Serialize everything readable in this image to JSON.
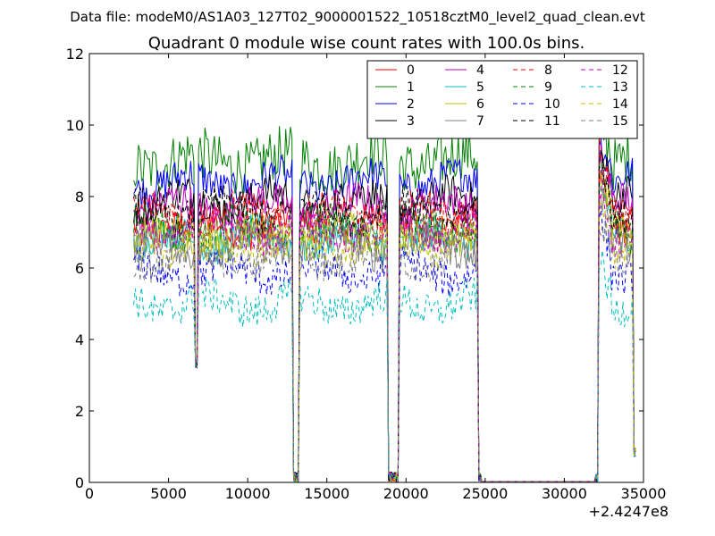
{
  "chart_data": {
    "type": "line",
    "suptitle": "Data file: modeM0/AS1A03_127T02_9000001522_10518cztM0_level2_quad_clean.evt",
    "title": "Quadrant 0 module wise count rates with 100.0s bins.",
    "xlabel": "",
    "ylabel": "",
    "xlim": [
      0,
      35000
    ],
    "ylim": [
      0,
      12
    ],
    "x_offset_label": "+2.4247e8",
    "x_ticks": [
      0,
      5000,
      10000,
      15000,
      20000,
      25000,
      30000,
      35000
    ],
    "x_tick_labels": [
      "0",
      "5000",
      "10000",
      "15000",
      "20000",
      "25000",
      "30000",
      "35000"
    ],
    "y_ticks": [
      0,
      2,
      4,
      6,
      8,
      10,
      12
    ],
    "y_tick_labels": [
      "0",
      "2",
      "4",
      "6",
      "8",
      "10",
      "12"
    ],
    "legend_position": "top-right",
    "bin_seconds": 100,
    "x_start": 2800,
    "x_end": 34500,
    "gaps": [
      {
        "start": 6700,
        "end": 6800,
        "min": 3.2
      },
      {
        "start": 12900,
        "end": 13200,
        "min": 0
      },
      {
        "start": 18900,
        "end": 19200,
        "min": 0
      },
      {
        "start": 19300,
        "end": 19500,
        "min": 0
      },
      {
        "start": 24600,
        "end": 32100,
        "min": 0
      },
      {
        "start": 34400,
        "end": 34500,
        "min": 0.7
      }
    ],
    "series": [
      {
        "name": "0",
        "color": "#ff0000",
        "style": "solid",
        "mean": 7.2
      },
      {
        "name": "1",
        "color": "#008000",
        "style": "solid",
        "mean": 9.0
      },
      {
        "name": "2",
        "color": "#0000ff",
        "style": "solid",
        "mean": 8.4
      },
      {
        "name": "3",
        "color": "#000000",
        "style": "solid",
        "mean": 7.9
      },
      {
        "name": "4",
        "color": "#bf00bf",
        "style": "solid",
        "mean": 7.7
      },
      {
        "name": "5",
        "color": "#00bfbf",
        "style": "solid",
        "mean": 6.8
      },
      {
        "name": "6",
        "color": "#bfbf00",
        "style": "solid",
        "mean": 6.9
      },
      {
        "name": "7",
        "color": "#808080",
        "style": "solid",
        "mean": 6.6
      },
      {
        "name": "8",
        "color": "#ff0000",
        "style": "dashed",
        "mean": 7.5
      },
      {
        "name": "9",
        "color": "#008000",
        "style": "dashed",
        "mean": 7.1
      },
      {
        "name": "10",
        "color": "#0000ff",
        "style": "dashed",
        "mean": 5.9
      },
      {
        "name": "11",
        "color": "#000000",
        "style": "dashed",
        "mean": 7.6
      },
      {
        "name": "12",
        "color": "#bf00bf",
        "style": "dashed",
        "mean": 7.0
      },
      {
        "name": "13",
        "color": "#00bfbf",
        "style": "dashed",
        "mean": 5.0
      },
      {
        "name": "14",
        "color": "#bfbf00",
        "style": "dashed",
        "mean": 6.6
      },
      {
        "name": "15",
        "color": "#808080",
        "style": "dashed",
        "mean": 6.3
      }
    ]
  }
}
